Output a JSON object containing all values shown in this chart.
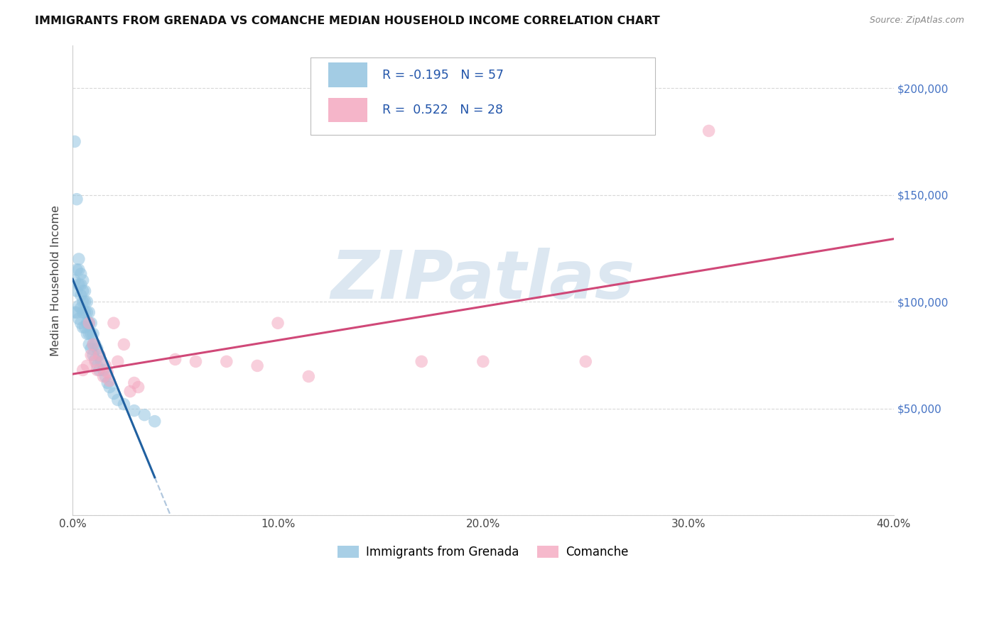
{
  "title": "IMMIGRANTS FROM GRENADA VS COMANCHE MEDIAN HOUSEHOLD INCOME CORRELATION CHART",
  "source": "Source: ZipAtlas.com",
  "ylabel": "Median Household Income",
  "legend_label_blue": "Immigrants from Grenada",
  "legend_label_pink": "Comanche",
  "R_blue": -0.195,
  "N_blue": 57,
  "R_pink": 0.522,
  "N_pink": 28,
  "blue_color": "#93c4e0",
  "pink_color": "#f4a8c0",
  "blue_line_color": "#2060a0",
  "pink_line_color": "#d04878",
  "xmin": 0.0,
  "xmax": 0.4,
  "ymin": 0,
  "ymax": 220000,
  "yticks": [
    0,
    50000,
    100000,
    150000,
    200000
  ],
  "ytick_labels_right": [
    "",
    "$50,000",
    "$100,000",
    "$150,000",
    "$200,000"
  ],
  "xticks": [
    0.0,
    0.1,
    0.2,
    0.3,
    0.4
  ],
  "xtick_labels": [
    "0.0%",
    "10.0%",
    "20.0%",
    "30.0%",
    "40.0%"
  ],
  "blue_x": [
    0.001,
    0.001,
    0.001,
    0.002,
    0.002,
    0.002,
    0.002,
    0.003,
    0.003,
    0.003,
    0.003,
    0.003,
    0.004,
    0.004,
    0.004,
    0.004,
    0.004,
    0.005,
    0.005,
    0.005,
    0.005,
    0.005,
    0.006,
    0.006,
    0.006,
    0.006,
    0.007,
    0.007,
    0.007,
    0.007,
    0.008,
    0.008,
    0.008,
    0.008,
    0.009,
    0.009,
    0.009,
    0.01,
    0.01,
    0.01,
    0.011,
    0.011,
    0.012,
    0.012,
    0.013,
    0.013,
    0.014,
    0.015,
    0.016,
    0.017,
    0.018,
    0.02,
    0.022,
    0.025,
    0.03,
    0.035,
    0.04
  ],
  "blue_y": [
    175000,
    110000,
    95000,
    148000,
    115000,
    105000,
    95000,
    120000,
    115000,
    108000,
    98000,
    92000,
    113000,
    108000,
    103000,
    97000,
    90000,
    110000,
    105000,
    100000,
    95000,
    88000,
    105000,
    100000,
    95000,
    88000,
    100000,
    95000,
    90000,
    85000,
    95000,
    90000,
    85000,
    80000,
    90000,
    85000,
    78000,
    85000,
    80000,
    75000,
    80000,
    73000,
    78000,
    70000,
    75000,
    68000,
    72000,
    68000,
    65000,
    62000,
    60000,
    57000,
    54000,
    52000,
    49000,
    47000,
    44000
  ],
  "pink_x": [
    0.005,
    0.007,
    0.008,
    0.009,
    0.01,
    0.011,
    0.012,
    0.013,
    0.015,
    0.016,
    0.017,
    0.018,
    0.02,
    0.022,
    0.025,
    0.028,
    0.03,
    0.032,
    0.05,
    0.06,
    0.075,
    0.09,
    0.1,
    0.115,
    0.17,
    0.2,
    0.25,
    0.31
  ],
  "pink_y": [
    68000,
    70000,
    90000,
    75000,
    80000,
    72000,
    68000,
    75000,
    65000,
    70000,
    67000,
    63000,
    90000,
    72000,
    80000,
    58000,
    62000,
    60000,
    73000,
    72000,
    72000,
    70000,
    90000,
    65000,
    72000,
    72000,
    72000,
    180000
  ],
  "watermark_text": "ZIPatlas",
  "watermark_color": "#c5d8e8",
  "grid_color": "#d8d8d8",
  "spine_color": "#cccccc"
}
